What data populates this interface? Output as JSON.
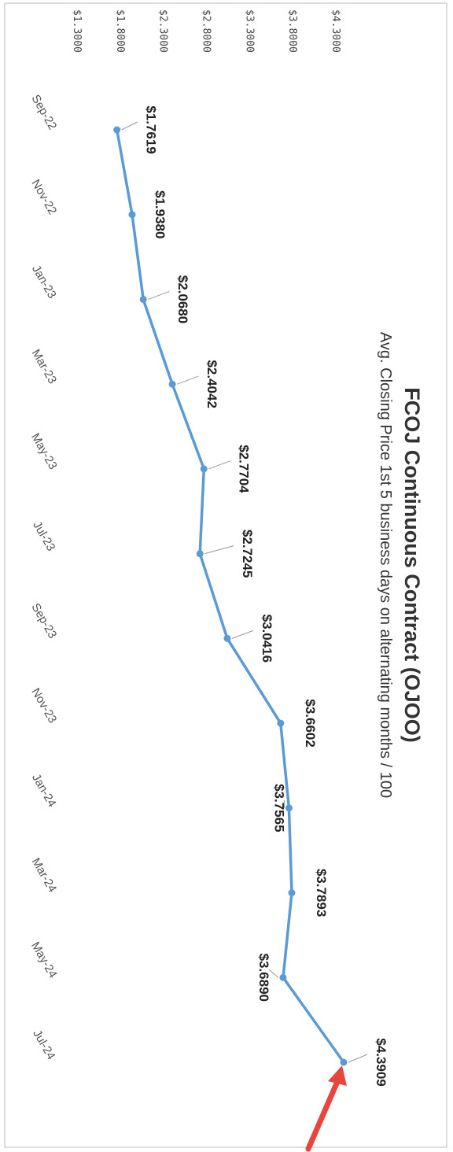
{
  "chart_data": {
    "type": "line",
    "title": "FCOJ Continuous Contract (OJOO)",
    "subtitle": "Avg. Closing Price 1st 5 business days on alternating months / 100",
    "categories": [
      "Sep-22",
      "Nov-22",
      "Jan-23",
      "Mar-23",
      "May-23",
      "Jul-23",
      "Sep-23",
      "Nov-23",
      "Jan-24",
      "Mar-24",
      "May-24",
      "Jul-24"
    ],
    "series": [
      {
        "values": [
          1.7619,
          1.938,
          2.068,
          2.4042,
          2.7704,
          2.7245,
          3.0416,
          3.6602,
          3.7565,
          3.7893,
          3.689,
          4.3909
        ],
        "labels": [
          "$1.7619",
          "$1.9380",
          "$2.0680",
          "$2.4042",
          "$2.7704",
          "$2.7245",
          "$3.0416",
          "$3.6602",
          "$3.7565",
          "$3.7893",
          "$3.6890",
          "$4.3909"
        ],
        "color": "#5b9bd5"
      }
    ],
    "ylim": [
      1.3,
      4.3
    ],
    "yticks": [
      1.3,
      1.8,
      2.3,
      2.8,
      3.3,
      3.8,
      4.3
    ],
    "ytick_labels": [
      "$1.3000",
      "$1.8000",
      "$2.3000",
      "$2.8000",
      "$3.3000",
      "$3.8000",
      "$4.3000"
    ],
    "grid": false,
    "orientation": "rotated 90 degrees clockwise",
    "annotation_arrow_color": "#e8453c"
  }
}
